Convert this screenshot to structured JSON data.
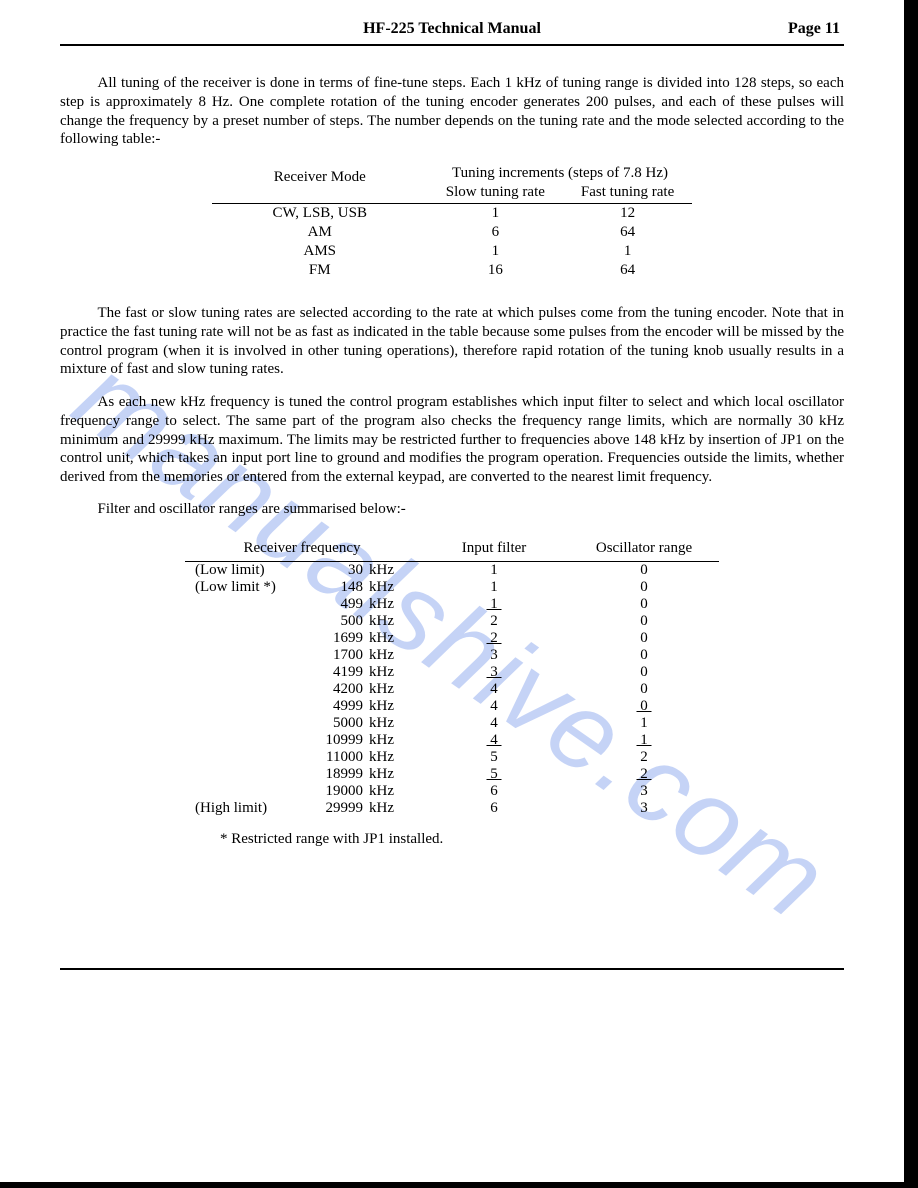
{
  "header": {
    "title": "HF-225 Technical Manual",
    "page_label": "Page 11"
  },
  "paragraphs": {
    "p1": "All tuning of the receiver is done in terms of fine-tune steps. Each 1 kHz of tuning range is divided into 128 steps, so each step is approximately 8 Hz. One complete rotation of the tuning encoder generates 200 pulses, and each of these pulses will change the frequency by a preset number of steps. The number depends on the tuning rate and the mode selected according to the following table:-",
    "p2": "The fast or slow tuning rates are selected according to the rate at which pulses come from the tuning encoder. Note that in practice the fast tuning rate will not be as fast as indicated in the table because some pulses from the encoder will be missed by the control program (when it is involved in other tuning operations), therefore rapid rotation of the tuning knob usually results in a mixture of fast and slow tuning rates.",
    "p3": "As each new kHz frequency is tuned the control program establishes which input filter to select and which local oscillator frequency range to select. The same part of the program also checks the frequency range limits, which are normally 30 kHz minimum and 29999 kHz maximum. The limits may be restricted further to frequencies above 148 kHz by insertion of JP1 on the control unit, which takes an input port line to ground and modifies the program operation. Frequencies outside the limits, whether derived from the memories or entered from the external keypad, are converted to the nearest limit frequency.",
    "summary": "Filter and oscillator ranges are summarised below:-"
  },
  "table1": {
    "col_mode": "Receiver Mode",
    "col_incr": "Tuning increments (steps of 7.8 Hz)",
    "col_slow": "Slow tuning rate",
    "col_fast": "Fast tuning rate",
    "rows": [
      {
        "mode": "CW, LSB, USB",
        "slow": "1",
        "fast": "12"
      },
      {
        "mode": "AM",
        "slow": "6",
        "fast": "64"
      },
      {
        "mode": "AMS",
        "slow": "1",
        "fast": "1"
      },
      {
        "mode": "FM",
        "slow": "16",
        "fast": "64"
      }
    ]
  },
  "table2": {
    "col_freq": "Receiver frequency",
    "col_filter": "Input filter",
    "col_osc": "Oscillator range",
    "unit": "kHz",
    "rows": [
      {
        "label": "(Low limit)",
        "freq": "30",
        "filter": "1",
        "osc": "0",
        "fUL": false,
        "oUL": false
      },
      {
        "label": "(Low limit *)",
        "freq": "148",
        "filter": "1",
        "osc": "0",
        "fUL": false,
        "oUL": false
      },
      {
        "label": "",
        "freq": "499",
        "filter": "1",
        "osc": "0",
        "fUL": true,
        "oUL": false
      },
      {
        "label": "",
        "freq": "500",
        "filter": "2",
        "osc": "0",
        "fUL": false,
        "oUL": false
      },
      {
        "label": "",
        "freq": "1699",
        "filter": "2",
        "osc": "0",
        "fUL": true,
        "oUL": false
      },
      {
        "label": "",
        "freq": "1700",
        "filter": "3",
        "osc": "0",
        "fUL": false,
        "oUL": false
      },
      {
        "label": "",
        "freq": "4199",
        "filter": "3",
        "osc": "0",
        "fUL": true,
        "oUL": false
      },
      {
        "label": "",
        "freq": "4200",
        "filter": "4",
        "osc": "0",
        "fUL": false,
        "oUL": false
      },
      {
        "label": "",
        "freq": "4999",
        "filter": "4",
        "osc": "0",
        "fUL": false,
        "oUL": true
      },
      {
        "label": "",
        "freq": "5000",
        "filter": "4",
        "osc": "1",
        "fUL": false,
        "oUL": false
      },
      {
        "label": "",
        "freq": "10999",
        "filter": "4",
        "osc": "1",
        "fUL": true,
        "oUL": true
      },
      {
        "label": "",
        "freq": "11000",
        "filter": "5",
        "osc": "2",
        "fUL": false,
        "oUL": false
      },
      {
        "label": "",
        "freq": "18999",
        "filter": "5",
        "osc": "2",
        "fUL": true,
        "oUL": true
      },
      {
        "label": "",
        "freq": "19000",
        "filter": "6",
        "osc": "3",
        "fUL": false,
        "oUL": false
      },
      {
        "label": "(High limit)",
        "freq": "29999",
        "filter": "6",
        "osc": "3",
        "fUL": false,
        "oUL": false
      }
    ]
  },
  "footnote": "* Restricted range with JP1 installed.",
  "watermark": "manualshive.com",
  "colors": {
    "text": "#000000",
    "background": "#ffffff",
    "watermark": "rgba(90,130,230,0.35)"
  }
}
